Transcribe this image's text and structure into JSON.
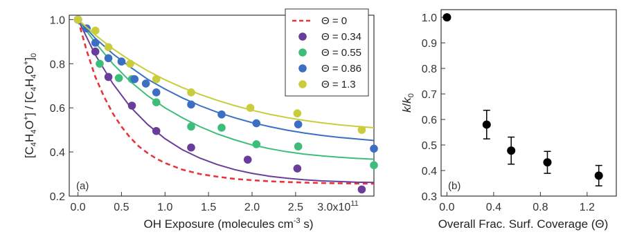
{
  "chart_data": [
    {
      "type": "scatter",
      "panel_label": "(a)",
      "ylabel": "[C4H4O+] / [C4H4O+]0",
      "xlabel": "OH Exposure (molecules cm-3 s)",
      "x_multiplier_label": "3.0x10",
      "x_multiplier_exp": "11",
      "xlim": [
        -10000000000.0,
        340000000000.0
      ],
      "ylim": [
        0.2,
        1.02
      ],
      "xticks": [
        0,
        50000000000.0,
        100000000000.0,
        150000000000.0,
        200000000000.0,
        250000000000.0
      ],
      "xtick_labels": [
        "0.0",
        "0.5",
        "1.0",
        "1.5",
        "2.0",
        "2.5"
      ],
      "yticks": [
        0.2,
        0.4,
        0.6,
        0.8,
        1.0
      ],
      "ytick_labels": [
        "0.2",
        "0.4",
        "0.6",
        "0.8",
        "1.0"
      ],
      "legend_position": "top-right",
      "series": [
        {
          "name": "Θ = 0",
          "color": "#e8343a",
          "kind": "dashed-line",
          "x": [
            0,
            10000000000.0,
            20000000000.0,
            30000000000.0,
            40000000000.0,
            50000000000.0,
            60000000000.0,
            70000000000.0,
            80000000000.0,
            90000000000.0,
            100000000000.0,
            120000000000.0,
            140000000000.0,
            160000000000.0,
            180000000000.0,
            200000000000.0,
            220000000000.0,
            240000000000.0,
            260000000000.0,
            280000000000.0,
            300000000000.0,
            320000000000.0,
            340000000000.0
          ],
          "y": [
            1.0,
            0.86,
            0.74,
            0.65,
            0.575,
            0.515,
            0.465,
            0.425,
            0.395,
            0.37,
            0.35,
            0.32,
            0.3,
            0.288,
            0.278,
            0.272,
            0.267,
            0.264,
            0.261,
            0.259,
            0.258,
            0.257,
            0.256
          ]
        },
        {
          "name": "Θ = 0.34",
          "color": "#6a3d9a",
          "kind": "points-fit",
          "points_x": [
            0,
            20000000000.0,
            35000000000.0,
            62000000000.0,
            90000000000.0,
            130000000000.0,
            195000000000.0,
            252000000000.0,
            326000000000.0
          ],
          "points_y": [
            1.0,
            0.855,
            0.74,
            0.61,
            0.495,
            0.42,
            0.365,
            0.325,
            0.23
          ],
          "fit_x": [
            0,
            20000000000.0,
            40000000000.0,
            60000000000.0,
            80000000000.0,
            100000000000.0,
            120000000000.0,
            140000000000.0,
            160000000000.0,
            180000000000.0,
            200000000000.0,
            220000000000.0,
            240000000000.0,
            260000000000.0,
            280000000000.0,
            300000000000.0,
            320000000000.0,
            340000000000.0
          ],
          "fit_y": [
            1.0,
            0.84,
            0.71,
            0.605,
            0.525,
            0.46,
            0.41,
            0.372,
            0.343,
            0.32,
            0.303,
            0.29,
            0.281,
            0.274,
            0.269,
            0.266,
            0.263,
            0.262
          ]
        },
        {
          "name": "Θ = 0.55",
          "color": "#3dbd7a",
          "kind": "points-fit",
          "points_x": [
            0,
            25000000000.0,
            47000000000.0,
            62000000000.0,
            90000000000.0,
            130000000000.0,
            165000000000.0,
            205000000000.0,
            253000000000.0,
            340000000000.0
          ],
          "points_y": [
            1.0,
            0.8,
            0.735,
            0.73,
            0.625,
            0.515,
            0.51,
            0.435,
            0.425,
            0.34
          ],
          "fit_x": [
            0,
            20000000000.0,
            40000000000.0,
            60000000000.0,
            80000000000.0,
            100000000000.0,
            120000000000.0,
            140000000000.0,
            160000000000.0,
            180000000000.0,
            200000000000.0,
            220000000000.0,
            240000000000.0,
            260000000000.0,
            280000000000.0,
            300000000000.0,
            320000000000.0,
            340000000000.0
          ],
          "fit_y": [
            1.0,
            0.895,
            0.8,
            0.72,
            0.655,
            0.6,
            0.555,
            0.515,
            0.482,
            0.455,
            0.432,
            0.415,
            0.401,
            0.39,
            0.382,
            0.376,
            0.371,
            0.367
          ]
        },
        {
          "name": "Θ = 0.86",
          "color": "#3a6fc4",
          "kind": "points-fit",
          "points_x": [
            0,
            10000000000.0,
            20000000000.0,
            35000000000.0,
            50000000000.0,
            65000000000.0,
            78000000000.0,
            90000000000.0,
            130000000000.0,
            165000000000.0,
            205000000000.0,
            253000000000.0,
            340000000000.0
          ],
          "points_y": [
            1.0,
            0.96,
            0.895,
            0.825,
            0.81,
            0.73,
            0.71,
            0.67,
            0.615,
            0.57,
            0.53,
            0.525,
            0.415
          ],
          "fit_x": [
            0,
            20000000000.0,
            40000000000.0,
            60000000000.0,
            80000000000.0,
            100000000000.0,
            120000000000.0,
            140000000000.0,
            160000000000.0,
            180000000000.0,
            200000000000.0,
            220000000000.0,
            240000000000.0,
            260000000000.0,
            280000000000.0,
            300000000000.0,
            320000000000.0,
            340000000000.0
          ],
          "fit_y": [
            1.0,
            0.915,
            0.845,
            0.785,
            0.73,
            0.685,
            0.645,
            0.61,
            0.58,
            0.555,
            0.533,
            0.515,
            0.499,
            0.486,
            0.475,
            0.466,
            0.459,
            0.452
          ]
        },
        {
          "name": "Θ = 1.3",
          "color": "#c9cc3b",
          "kind": "points-fit",
          "points_x": [
            0,
            20000000000.0,
            35000000000.0,
            60000000000.0,
            90000000000.0,
            130000000000.0,
            198000000000.0,
            252000000000.0,
            326000000000.0
          ],
          "points_y": [
            1.0,
            0.95,
            0.875,
            0.8,
            0.73,
            0.67,
            0.6,
            0.575,
            0.5
          ],
          "fit_x": [
            0,
            20000000000.0,
            40000000000.0,
            60000000000.0,
            80000000000.0,
            100000000000.0,
            120000000000.0,
            140000000000.0,
            160000000000.0,
            180000000000.0,
            200000000000.0,
            220000000000.0,
            240000000000.0,
            260000000000.0,
            280000000000.0,
            300000000000.0,
            320000000000.0,
            340000000000.0
          ],
          "fit_y": [
            1.0,
            0.93,
            0.868,
            0.815,
            0.768,
            0.727,
            0.692,
            0.661,
            0.634,
            0.61,
            0.589,
            0.571,
            0.556,
            0.543,
            0.532,
            0.523,
            0.516,
            0.51
          ]
        }
      ]
    },
    {
      "type": "scatter",
      "panel_label": "(b)",
      "ylabel": "k/k0",
      "xlabel": "Overall Frac. Surf. Coverage (Θ)",
      "xlim": [
        -0.05,
        1.45
      ],
      "ylim": [
        0.3,
        1.03
      ],
      "xticks": [
        0.0,
        0.4,
        0.8,
        1.2
      ],
      "xtick_labels": [
        "0.0",
        "0.4",
        "0.8",
        "1.2"
      ],
      "yticks": [
        0.3,
        0.4,
        0.5,
        0.6,
        0.7,
        0.8,
        0.9,
        1.0
      ],
      "ytick_labels": [
        "0.3",
        "0.4",
        "0.5",
        "0.6",
        "0.7",
        "0.8",
        "0.9",
        "1.0"
      ],
      "color": "#000000",
      "x": [
        0.0,
        0.34,
        0.55,
        0.86,
        1.3
      ],
      "y": [
        1.0,
        0.58,
        0.478,
        0.432,
        0.38
      ],
      "yerr": [
        0.0,
        0.056,
        0.053,
        0.043,
        0.04
      ]
    }
  ]
}
